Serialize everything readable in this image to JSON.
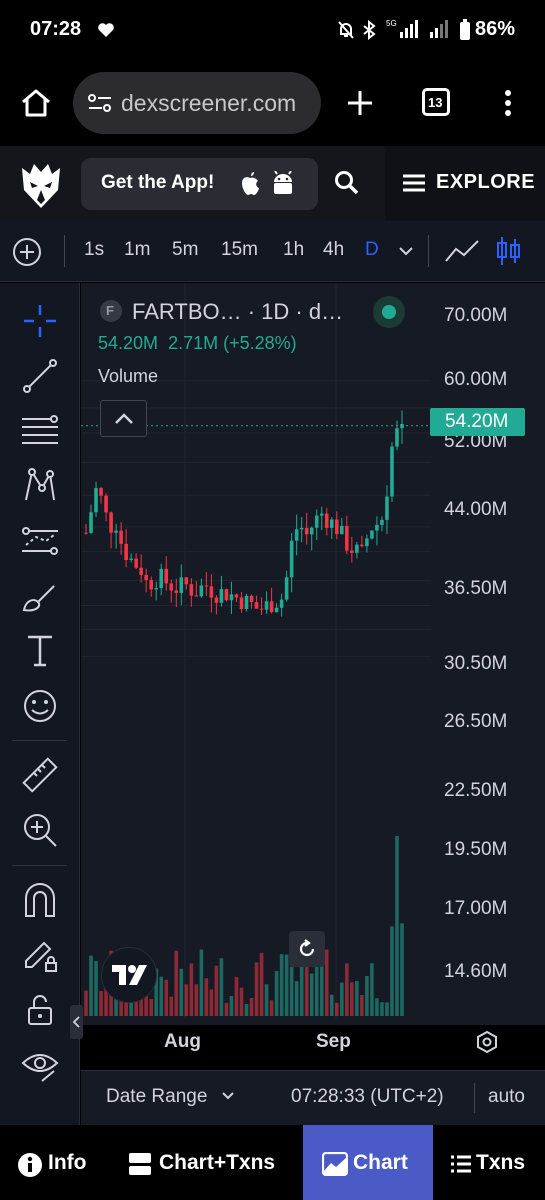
{
  "status_bar": {
    "time": "07:28",
    "battery": "86%",
    "network": "5G"
  },
  "browser": {
    "url": "dexscreener.com",
    "tab_count": "13"
  },
  "header": {
    "get_app_label": "Get the App!",
    "explore_label": "EXPLORE"
  },
  "timeframes": [
    {
      "label": "1s"
    },
    {
      "label": "1m"
    },
    {
      "label": "5m"
    },
    {
      "label": "15m"
    },
    {
      "label": "1h"
    },
    {
      "label": "4h"
    },
    {
      "label": "D",
      "active": true
    }
  ],
  "legend": {
    "symbol": "FARTBO…   · 1D · d…",
    "badge": "F",
    "value": "54.20M",
    "change": "2.71M (+5.28%)",
    "study": "Volume"
  },
  "chart_data": {
    "type": "candlestick",
    "y_axis_ticks": [
      "70.00M",
      "60.00M",
      "52.00M",
      "44.00M",
      "36.50M",
      "30.50M",
      "26.50M",
      "22.50M",
      "19.50M",
      "17.00M",
      "14.60M"
    ],
    "x_axis_ticks": [
      "Aug",
      "Sep"
    ],
    "last_price_label": "54.20M",
    "last_price": 54.2,
    "y_scale": "log",
    "colors": {
      "up": "#22ab94",
      "down": "#f23645"
    }
  },
  "date_range": {
    "label": "Date Range",
    "time": "07:28:33 (UTC+2)",
    "scale": "auto"
  },
  "bottom_nav": {
    "info": "Info",
    "chart_txns": "Chart+Txns",
    "chart": "Chart",
    "txns": "Txns"
  }
}
